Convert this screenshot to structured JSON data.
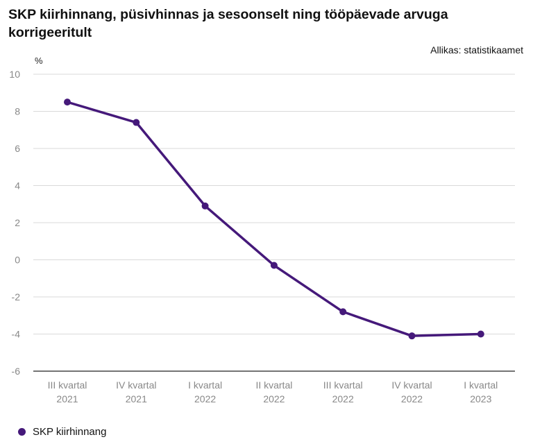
{
  "header": {
    "title": "SKP kiirhinnang, püsivhinnas ja sesoonselt ning tööpäevade arvuga korrigeeritult",
    "source": "Allikas: statistikaamet"
  },
  "chart_data": {
    "type": "line",
    "unit_label": "%",
    "categories": [
      [
        "III kvartal",
        "2021"
      ],
      [
        "IV kvartal",
        "2021"
      ],
      [
        "I kvartal",
        "2022"
      ],
      [
        "II kvartal",
        "2022"
      ],
      [
        "III kvartal",
        "2022"
      ],
      [
        "IV kvartal",
        "2022"
      ],
      [
        "I kvartal",
        "2023"
      ]
    ],
    "series": [
      {
        "name": "SKP kiirhinnang",
        "values": [
          8.5,
          7.4,
          2.9,
          -0.3,
          -2.8,
          -4.1,
          -4.0
        ],
        "color": "#45197a"
      }
    ],
    "ylim": [
      -6,
      10
    ],
    "yticks": [
      10,
      8,
      6,
      4,
      2,
      0,
      -2,
      -4,
      -6
    ],
    "grid": true,
    "legend_position": "bottom-left"
  }
}
